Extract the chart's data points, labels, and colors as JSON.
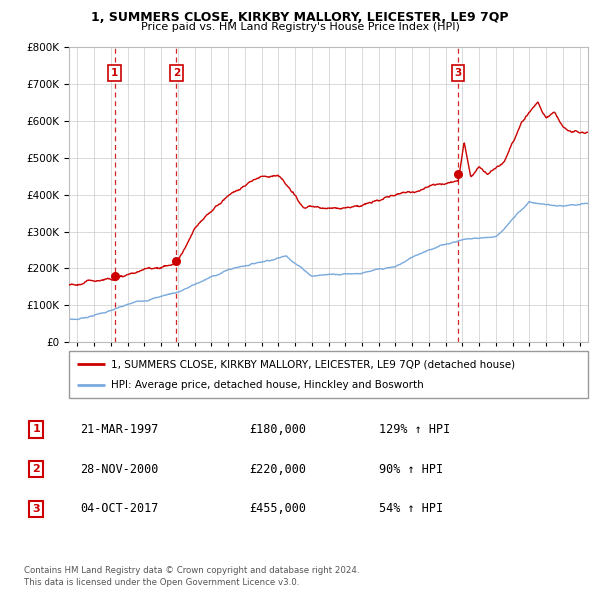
{
  "title": "1, SUMMERS CLOSE, KIRKBY MALLORY, LEICESTER, LE9 7QP",
  "subtitle": "Price paid vs. HM Land Registry's House Price Index (HPI)",
  "ylim": [
    0,
    800000
  ],
  "yticks": [
    0,
    100000,
    200000,
    300000,
    400000,
    500000,
    600000,
    700000,
    800000
  ],
  "sale_year_floats": [
    1997.22,
    2000.91,
    2017.75
  ],
  "sale_prices": [
    180000,
    220000,
    455000
  ],
  "sale_labels": [
    "1",
    "2",
    "3"
  ],
  "legend_house": "1, SUMMERS CLOSE, KIRKBY MALLORY, LEICESTER, LE9 7QP (detached house)",
  "legend_hpi": "HPI: Average price, detached house, Hinckley and Bosworth",
  "table_rows": [
    {
      "label": "1",
      "date": "21-MAR-1997",
      "price": "£180,000",
      "hpi": "129% ↑ HPI"
    },
    {
      "label": "2",
      "date": "28-NOV-2000",
      "price": "£220,000",
      "hpi": "90% ↑ HPI"
    },
    {
      "label": "3",
      "date": "04-OCT-2017",
      "price": "£455,000",
      "hpi": "54% ↑ HPI"
    }
  ],
  "footer": "Contains HM Land Registry data © Crown copyright and database right 2024.\nThis data is licensed under the Open Government Licence v3.0.",
  "house_color": "#cc0000",
  "hpi_color": "#7aaadd",
  "vline_color": "#cc0000",
  "grid_color": "#cccccc",
  "label_box_color": "#cc0000"
}
